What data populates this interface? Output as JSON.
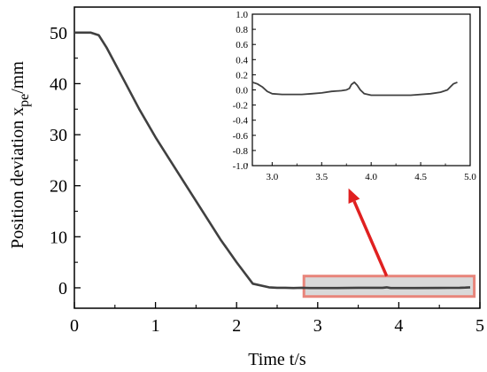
{
  "chart_data": {
    "type": "line",
    "main": {
      "xlabel": "Time t/s",
      "ylabel": {
        "prefix": "Position deviation x",
        "subscript": "pe",
        "suffix": "/mm"
      },
      "xlim": [
        0,
        5
      ],
      "ylim": [
        -4,
        55
      ],
      "xticks": [
        "0",
        "1",
        "2",
        "3",
        "4",
        "5"
      ],
      "yticks": [
        "0",
        "10",
        "20",
        "30",
        "40",
        "50"
      ],
      "grid": false,
      "series": [
        {
          "color": "#404040",
          "x": [
            0,
            0.2,
            0.3,
            0.4,
            0.6,
            0.8,
            1.0,
            1.2,
            1.4,
            1.6,
            1.8,
            2.0,
            2.2,
            2.4,
            2.5,
            2.6,
            2.7,
            2.8,
            2.9,
            3.0,
            3.2,
            3.5,
            3.8,
            3.85,
            3.9,
            4.2,
            4.5,
            4.75,
            4.82,
            4.88
          ],
          "y": [
            50,
            50,
            49.5,
            47,
            41,
            35,
            29.5,
            24.5,
            19.5,
            14.5,
            9.5,
            5,
            0.8,
            0.1,
            0,
            0,
            -0.05,
            0,
            -0.05,
            -0.05,
            -0.05,
            0,
            0,
            0.1,
            -0.05,
            -0.05,
            -0.03,
            0,
            0.05,
            0.1
          ]
        }
      ]
    },
    "highlight": {
      "x_range": [
        2.83,
        4.93
      ],
      "y_range": [
        -1.7,
        2.3
      ],
      "border_color": "#e8857b",
      "fill_color": "#d9d9d9"
    },
    "arrow": {
      "color": "#e02020",
      "from": [
        3.85,
        2.3
      ],
      "to": [
        3.38,
        19.5
      ]
    },
    "inset": {
      "xlim": [
        2.8,
        5.0
      ],
      "ylim": [
        -1.0,
        1.0
      ],
      "xticks": [
        "3.0",
        "3.5",
        "4.0",
        "4.5",
        "5.0"
      ],
      "yticks": [
        "1.0",
        "0.8",
        "0.6",
        "0.4",
        "0.2",
        "0.0",
        "-0.2",
        "-0.4",
        "-0.6",
        "-0.8",
        "-1.0"
      ],
      "series": [
        {
          "color": "#404040",
          "x": [
            2.8,
            2.85,
            2.9,
            2.95,
            3.0,
            3.1,
            3.2,
            3.3,
            3.4,
            3.5,
            3.6,
            3.7,
            3.75,
            3.78,
            3.8,
            3.83,
            3.86,
            3.89,
            3.93,
            4.0,
            4.2,
            4.4,
            4.6,
            4.7,
            4.77,
            4.8,
            4.83,
            4.87
          ],
          "y": [
            0.1,
            0.08,
            0.04,
            -0.02,
            -0.05,
            -0.06,
            -0.06,
            -0.06,
            -0.05,
            -0.04,
            -0.02,
            -0.01,
            0.0,
            0.02,
            0.07,
            0.1,
            0.06,
            0.0,
            -0.05,
            -0.07,
            -0.07,
            -0.07,
            -0.05,
            -0.03,
            0.0,
            0.04,
            0.08,
            0.1
          ]
        }
      ]
    }
  }
}
